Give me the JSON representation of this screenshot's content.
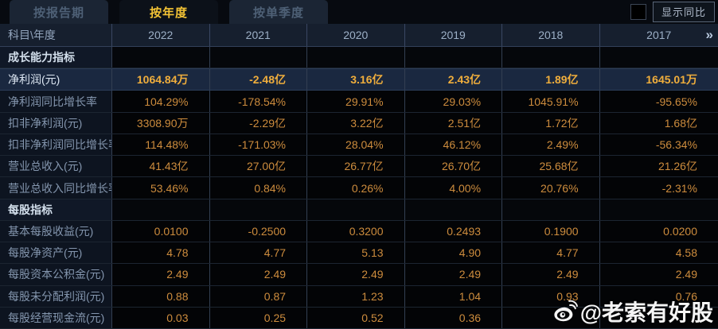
{
  "tabs": [
    {
      "label": "按报告期",
      "active": false
    },
    {
      "label": "按年度",
      "active": true
    },
    {
      "label": "按单季度",
      "active": false
    }
  ],
  "controls": {
    "show_yoy_label": "显示同比",
    "checkbox_checked": false
  },
  "table": {
    "corner_header": "科目\\年度",
    "years": [
      "2022",
      "2021",
      "2020",
      "2019",
      "2018",
      "2017"
    ],
    "more_years_glyph": "»",
    "rows": [
      {
        "type": "section",
        "label": "成长能力指标",
        "values": [
          "",
          "",
          "",
          "",
          "",
          ""
        ]
      },
      {
        "type": "data",
        "highlight": true,
        "label": "净利润(元)",
        "values": [
          "1064.84万",
          "-2.48亿",
          "3.16亿",
          "2.43亿",
          "1.89亿",
          "1645.01万"
        ]
      },
      {
        "type": "data",
        "label": "净利润同比增长率",
        "values": [
          "104.29%",
          "-178.54%",
          "29.91%",
          "29.03%",
          "1045.91%",
          "-95.65%"
        ]
      },
      {
        "type": "data",
        "label": "扣非净利润(元)",
        "values": [
          "3308.90万",
          "-2.29亿",
          "3.22亿",
          "2.51亿",
          "1.72亿",
          "1.68亿"
        ]
      },
      {
        "type": "data",
        "label": "扣非净利润同比增长率",
        "values": [
          "114.48%",
          "-171.03%",
          "28.04%",
          "46.12%",
          "2.49%",
          "-56.34%"
        ]
      },
      {
        "type": "data",
        "label": "营业总收入(元)",
        "values": [
          "41.43亿",
          "27.00亿",
          "26.77亿",
          "26.70亿",
          "25.68亿",
          "21.26亿"
        ]
      },
      {
        "type": "data",
        "label": "营业总收入同比增长率",
        "values": [
          "53.46%",
          "0.84%",
          "0.26%",
          "4.00%",
          "20.76%",
          "-2.31%"
        ]
      },
      {
        "type": "section",
        "label": "每股指标",
        "values": [
          "",
          "",
          "",
          "",
          "",
          ""
        ]
      },
      {
        "type": "data",
        "label": "基本每股收益(元)",
        "values": [
          "0.0100",
          "-0.2500",
          "0.3200",
          "0.2493",
          "0.1900",
          "0.0200"
        ]
      },
      {
        "type": "data",
        "label": "每股净资产(元)",
        "values": [
          "4.78",
          "4.77",
          "5.13",
          "4.90",
          "4.77",
          "4.58"
        ]
      },
      {
        "type": "data",
        "label": "每股资本公积金(元)",
        "values": [
          "2.49",
          "2.49",
          "2.49",
          "2.49",
          "2.49",
          "2.49"
        ]
      },
      {
        "type": "data",
        "label": "每股未分配利润(元)",
        "values": [
          "0.88",
          "0.87",
          "1.23",
          "1.04",
          "0.93",
          "0.76"
        ]
      },
      {
        "type": "data",
        "label": "每股经营现金流(元)",
        "values": [
          "0.03",
          "0.25",
          "0.52",
          "0.36",
          "",
          ""
        ]
      }
    ]
  },
  "watermark": {
    "text": "@老索有好股",
    "icon": "weibo-icon"
  },
  "colors": {
    "accent_gold": "#f3c335",
    "value_orange": "#cd8c3d",
    "highlight_row_bg": "#1a2840",
    "header_bg": "#161f2e",
    "label_col_bg": "#0d1420"
  }
}
